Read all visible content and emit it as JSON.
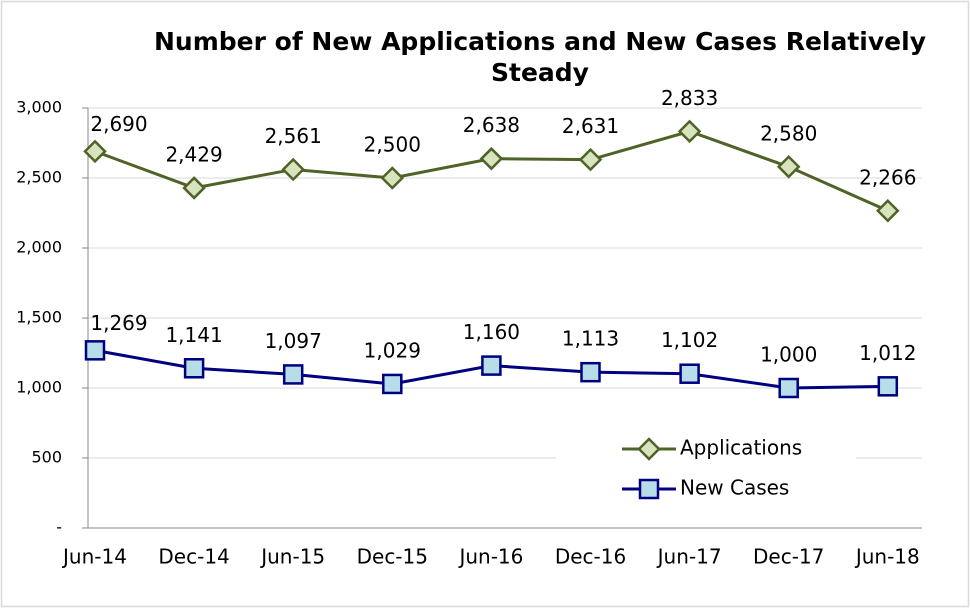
{
  "chart_data": {
    "type": "line",
    "title": "Number of New Applications and New Cases Relatively Steady",
    "categories": [
      "Jun-14",
      "Dec-14",
      "Jun-15",
      "Dec-15",
      "Jun-16",
      "Dec-16",
      "Jun-17",
      "Dec-17",
      "Jun-18"
    ],
    "series": [
      {
        "name": "Applications",
        "color": "#4f6228",
        "marker_fill": "#d7e4bd",
        "marker": "diamond",
        "values": [
          2690,
          2429,
          2561,
          2500,
          2638,
          2631,
          2833,
          2580,
          2266
        ],
        "value_labels": [
          "2,690",
          "2,429",
          "2,561",
          "2,500",
          "2,638",
          "2,631",
          "2,833",
          "2,580",
          "2,266"
        ]
      },
      {
        "name": "New Cases",
        "color": "#000080",
        "marker_fill": "#b7dde8",
        "marker": "square",
        "values": [
          1269,
          1141,
          1097,
          1029,
          1160,
          1113,
          1102,
          1000,
          1012
        ],
        "value_labels": [
          "1,269",
          "1,141",
          "1,097",
          "1,029",
          "1,160",
          "1,113",
          "1,102",
          "1,000",
          "1,012"
        ]
      }
    ],
    "ylim": [
      0,
      3000
    ],
    "yticks": [
      {
        "value": 0,
        "label": "-"
      },
      500,
      {
        "value": 1000,
        "label": "1,000"
      },
      {
        "value": 1500,
        "label": "1,500"
      },
      {
        "value": 2000,
        "label": "2,000"
      },
      {
        "value": 2500,
        "label": "2,500"
      },
      {
        "value": 3000,
        "label": "3,000"
      }
    ],
    "grid": true,
    "legend": "lower right"
  }
}
